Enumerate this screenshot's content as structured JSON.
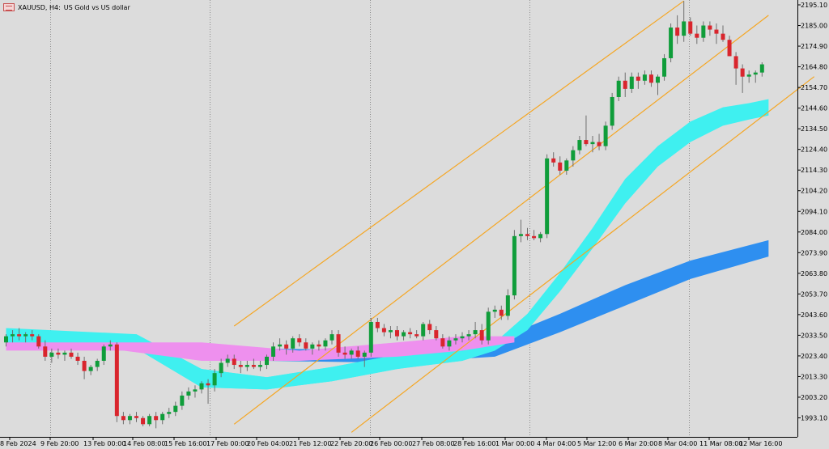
{
  "window": {
    "symbol": "XAUUSD, H4:",
    "description": "US Gold vs US dollar"
  },
  "colors": {
    "background": "#dcdcdc",
    "bull_candle": "#0f9d3a",
    "bear_candle": "#d9252d",
    "channel": "#f5a623",
    "cloud_fast_above": "#3ff0f0",
    "cloud_fast_below": "#ee90ee",
    "cloud_slow": "#2e8ff0",
    "grid": "#8c8c8c"
  },
  "chart_data": {
    "type": "candlestick",
    "symbol": "XAUUSD",
    "timeframe": "H4",
    "ylim": [
      1986,
      2198
    ],
    "y_ticks": [
      "2195.10",
      "2185.00",
      "2174.90",
      "2164.80",
      "2154.70",
      "2144.60",
      "2134.50",
      "2124.40",
      "2114.30",
      "2104.20",
      "2094.10",
      "2084.00",
      "2073.90",
      "2063.80",
      "2053.70",
      "2043.60",
      "2033.50",
      "2023.40",
      "2013.30",
      "2003.20",
      "1993.10"
    ],
    "x_ticks": [
      "8 Feb 2024",
      "9 Feb 20:00",
      "13 Feb 00:00",
      "14 Feb 08:00",
      "15 Feb 16:00",
      "17 Feb 00:00",
      "20 Feb 04:00",
      "21 Feb 12:00",
      "22 Feb 20:00",
      "26 Feb 00:00",
      "27 Feb 08:00",
      "28 Feb 16:00",
      "1 Mar 00:00",
      "4 Mar 04:00",
      "5 Mar 12:00",
      "6 Mar 20:00",
      "8 Mar 04:00",
      "11 Mar 08:00",
      "12 Mar 16:00"
    ],
    "candles": [
      [
        2030,
        2034,
        2028,
        2033
      ],
      [
        2033,
        2036,
        2030,
        2034
      ],
      [
        2034,
        2037,
        2031,
        2033
      ],
      [
        2033,
        2035,
        2030,
        2034
      ],
      [
        2034,
        2036,
        2031,
        2033
      ],
      [
        2033,
        2034,
        2027,
        2028
      ],
      [
        2028,
        2031,
        2021,
        2023
      ],
      [
        2023,
        2027,
        2020,
        2025
      ],
      [
        2025,
        2027,
        2022,
        2024
      ],
      [
        2024,
        2026,
        2021,
        2025
      ],
      [
        2025,
        2027,
        2022,
        2023
      ],
      [
        2023,
        2025,
        2019,
        2021
      ],
      [
        2021,
        2023,
        2012,
        2016
      ],
      [
        2016,
        2019,
        2014,
        2018
      ],
      [
        2018,
        2022,
        2016,
        2021
      ],
      [
        2021,
        2029,
        2019,
        2028
      ],
      [
        2028,
        2031,
        2026,
        2029
      ],
      [
        2029,
        2030,
        1991,
        1994
      ],
      [
        1994,
        1996,
        1990,
        1992
      ],
      [
        1992,
        1995,
        1990,
        1994
      ],
      [
        1994,
        1996,
        1991,
        1993
      ],
      [
        1993,
        1994,
        1989,
        1990
      ],
      [
        1990,
        1995,
        1989,
        1994
      ],
      [
        1994,
        1996,
        1988,
        1992
      ],
      [
        1992,
        1996,
        1990,
        1995
      ],
      [
        1995,
        1998,
        1993,
        1996
      ],
      [
        1996,
        2001,
        1994,
        1999
      ],
      [
        1999,
        2006,
        1997,
        2004
      ],
      [
        2004,
        2008,
        2002,
        2006
      ],
      [
        2006,
        2009,
        2003,
        2007
      ],
      [
        2007,
        2011,
        2005,
        2010
      ],
      [
        2010,
        2012,
        2000,
        2009
      ],
      [
        2009,
        2017,
        2006,
        2015
      ],
      [
        2015,
        2022,
        2013,
        2020
      ],
      [
        2020,
        2024,
        2018,
        2022
      ],
      [
        2022,
        2024,
        2017,
        2019
      ],
      [
        2019,
        2021,
        2015,
        2018
      ],
      [
        2018,
        2021,
        2016,
        2019
      ],
      [
        2019,
        2022,
        2017,
        2018
      ],
      [
        2018,
        2021,
        2016,
        2019
      ],
      [
        2019,
        2024,
        2017,
        2023
      ],
      [
        2023,
        2030,
        2021,
        2028
      ],
      [
        2028,
        2032,
        2026,
        2029
      ],
      [
        2029,
        2031,
        2024,
        2027
      ],
      [
        2027,
        2033,
        2025,
        2032
      ],
      [
        2032,
        2034,
        2028,
        2030
      ],
      [
        2030,
        2032,
        2026,
        2027
      ],
      [
        2027,
        2030,
        2024,
        2029
      ],
      [
        2029,
        2031,
        2026,
        2028
      ],
      [
        2028,
        2032,
        2026,
        2031
      ],
      [
        2031,
        2036,
        2029,
        2034
      ],
      [
        2034,
        2036,
        2023,
        2025
      ],
      [
        2025,
        2028,
        2022,
        2024
      ],
      [
        2024,
        2027,
        2022,
        2026
      ],
      [
        2026,
        2028,
        2022,
        2023
      ],
      [
        2023,
        2026,
        2018,
        2025
      ],
      [
        2025,
        2042,
        2023,
        2040
      ],
      [
        2040,
        2042,
        2035,
        2037
      ],
      [
        2037,
        2039,
        2033,
        2035
      ],
      [
        2035,
        2038,
        2032,
        2036
      ],
      [
        2036,
        2038,
        2031,
        2033
      ],
      [
        2033,
        2036,
        2031,
        2035
      ],
      [
        2035,
        2037,
        2032,
        2034
      ],
      [
        2034,
        2036,
        2032,
        2033
      ],
      [
        2033,
        2040,
        2031,
        2039
      ],
      [
        2039,
        2041,
        2034,
        2036
      ],
      [
        2036,
        2038,
        2031,
        2032
      ],
      [
        2032,
        2034,
        2027,
        2028
      ],
      [
        2028,
        2033,
        2026,
        2031
      ],
      [
        2031,
        2034,
        2029,
        2032
      ],
      [
        2032,
        2035,
        2030,
        2033
      ],
      [
        2033,
        2036,
        2031,
        2034
      ],
      [
        2034,
        2040,
        2032,
        2036
      ],
      [
        2036,
        2039,
        2029,
        2031
      ],
      [
        2031,
        2047,
        2029,
        2045
      ],
      [
        2045,
        2048,
        2042,
        2046
      ],
      [
        2046,
        2048,
        2041,
        2043
      ],
      [
        2043,
        2056,
        2041,
        2053
      ],
      [
        2053,
        2085,
        2051,
        2082
      ],
      [
        2082,
        2090,
        2079,
        2083
      ],
      [
        2083,
        2086,
        2080,
        2082
      ],
      [
        2082,
        2085,
        2080,
        2081
      ],
      [
        2081,
        2084,
        2079,
        2083
      ],
      [
        2083,
        2122,
        2081,
        2120
      ],
      [
        2120,
        2123,
        2116,
        2118
      ],
      [
        2118,
        2121,
        2112,
        2114
      ],
      [
        2114,
        2120,
        2112,
        2119
      ],
      [
        2119,
        2126,
        2116,
        2124
      ],
      [
        2124,
        2131,
        2122,
        2129
      ],
      [
        2129,
        2141,
        2126,
        2127
      ],
      [
        2127,
        2131,
        2123,
        2128
      ],
      [
        2128,
        2132,
        2124,
        2126
      ],
      [
        2126,
        2138,
        2124,
        2136
      ],
      [
        2136,
        2152,
        2134,
        2150
      ],
      [
        2150,
        2160,
        2148,
        2158
      ],
      [
        2158,
        2162,
        2150,
        2154
      ],
      [
        2154,
        2162,
        2152,
        2160
      ],
      [
        2160,
        2162,
        2154,
        2158
      ],
      [
        2158,
        2163,
        2156,
        2161
      ],
      [
        2161,
        2163,
        2155,
        2157
      ],
      [
        2157,
        2161,
        2151,
        2160
      ],
      [
        2160,
        2171,
        2158,
        2169
      ],
      [
        2169,
        2186,
        2167,
        2184
      ],
      [
        2184,
        2190,
        2176,
        2180
      ],
      [
        2180,
        2197,
        2177,
        2187
      ],
      [
        2187,
        2189,
        2180,
        2181
      ],
      [
        2181,
        2185,
        2176,
        2179
      ],
      [
        2179,
        2187,
        2177,
        2185
      ],
      [
        2185,
        2187,
        2180,
        2183
      ],
      [
        2183,
        2186,
        2176,
        2181
      ],
      [
        2181,
        2185,
        2177,
        2178
      ],
      [
        2178,
        2180,
        2170,
        2170
      ],
      [
        2170,
        2172,
        2156,
        2164
      ],
      [
        2164,
        2166,
        2152,
        2160
      ],
      [
        2160,
        2163,
        2157,
        2161
      ],
      [
        2161,
        2163,
        2157,
        2162
      ],
      [
        2162,
        2167,
        2160,
        2166
      ]
    ],
    "indicators": {
      "fast_cloud_upper": [
        [
          0,
          2037
        ],
        [
          20,
          2034
        ],
        [
          30,
          2017
        ],
        [
          40,
          2013
        ],
        [
          50,
          2018
        ],
        [
          60,
          2024
        ],
        [
          70,
          2026
        ],
        [
          75,
          2030
        ],
        [
          80,
          2044
        ],
        [
          85,
          2064
        ],
        [
          90,
          2086
        ],
        [
          95,
          2110
        ],
        [
          100,
          2126
        ],
        [
          105,
          2138
        ],
        [
          110,
          2145
        ],
        [
          114,
          2147
        ],
        [
          117,
          2149
        ]
      ],
      "fast_cloud_lower": [
        [
          0,
          2030
        ],
        [
          20,
          2027
        ],
        [
          30,
          2008
        ],
        [
          40,
          2007
        ],
        [
          50,
          2011
        ],
        [
          60,
          2017
        ],
        [
          70,
          2021
        ],
        [
          75,
          2026
        ],
        [
          80,
          2036
        ],
        [
          85,
          2055
        ],
        [
          90,
          2076
        ],
        [
          95,
          2098
        ],
        [
          100,
          2116
        ],
        [
          105,
          2128
        ],
        [
          110,
          2136
        ],
        [
          114,
          2139
        ],
        [
          117,
          2141
        ]
      ],
      "slow_cloud_upper": [
        [
          0,
          2034
        ],
        [
          20,
          2030
        ],
        [
          40,
          2027
        ],
        [
          60,
          2026
        ],
        [
          75,
          2031
        ],
        [
          85,
          2044
        ],
        [
          95,
          2058
        ],
        [
          105,
          2070
        ],
        [
          117,
          2080
        ]
      ],
      "slow_cloud_lower": [
        [
          0,
          2027
        ],
        [
          20,
          2026
        ],
        [
          40,
          2021
        ],
        [
          60,
          2020
        ],
        [
          75,
          2023
        ],
        [
          85,
          2035
        ],
        [
          95,
          2048
        ],
        [
          105,
          2061
        ],
        [
          117,
          2072
        ]
      ]
    },
    "channel_lines": [
      [
        [
          35,
          2038
        ],
        [
          104,
          2197
        ]
      ],
      [
        [
          35,
          1990
        ],
        [
          117,
          2190
        ]
      ],
      [
        [
          53,
          1986
        ],
        [
          124,
          2160
        ]
      ]
    ]
  }
}
